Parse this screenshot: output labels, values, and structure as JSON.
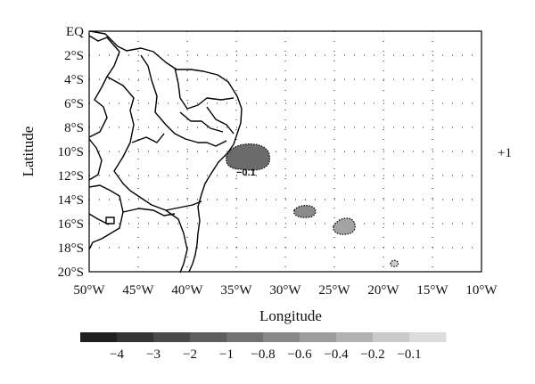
{
  "map": {
    "xlabel": "Longitude",
    "ylabel": "Latitude",
    "lon_ticks": [
      "50°W",
      "45°W",
      "40°W",
      "35°W",
      "30°W",
      "25°W",
      "20°W",
      "15°W",
      "10°W"
    ],
    "lat_ticks": [
      "EQ",
      "2°S",
      "4°S",
      "6°S",
      "8°S",
      "10°S",
      "12°S",
      "14°S",
      "16°S",
      "18°S",
      "20°S"
    ],
    "side_annotation": "+1",
    "contour_label": "−0.1"
  },
  "chart_data": {
    "type": "heatmap",
    "xlabel": "Longitude",
    "ylabel": "Latitude",
    "xlim": [
      -50,
      -10
    ],
    "ylim": [
      -20,
      0
    ],
    "grid": "dotted",
    "anomaly_regions": [
      {
        "lon": -33.9,
        "lat": -10.5,
        "value": -1.0
      },
      {
        "lon": -28.3,
        "lat": -14.9,
        "value": -0.6
      },
      {
        "lon": -23.8,
        "lat": -16.3,
        "value": -0.4
      },
      {
        "lon": -19.5,
        "lat": -19.3,
        "value": -0.1
      }
    ],
    "colorbar": {
      "labels": [
        "−4",
        "−3",
        "−2",
        "−1",
        "−0.8",
        "−0.6",
        "−0.4",
        "−0.2",
        "−0.1"
      ],
      "colors": [
        "#1f1f1f",
        "#333333",
        "#4a4a4a",
        "#5e5e5e",
        "#727272",
        "#878787",
        "#9c9c9c",
        "#b2b2b2",
        "#c9c9c9",
        "#dcdcdc"
      ]
    }
  }
}
